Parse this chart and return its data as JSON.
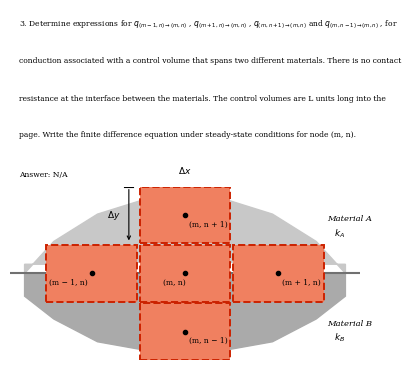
{
  "title_lines": [
    "3. Determine expressions for q(m-1,n)→(m,n) , q(m+1,n)→(m,n) , q(m,n+1)→(m,n) and q(m,n-1)→(m,n) , for",
    "conduction associated with a control volume that spans two different materials. There is no contact",
    "resistance at the interface between the materials. The control volumes are L units long into the",
    "page. Write the finite difference equation under steady-state conditions for node (m, n).",
    "Answer: N/A"
  ],
  "cell_fill": "#f08060",
  "cell_edge": "#cc2200",
  "mat_A_blob_color": "#c8c8c8",
  "mat_B_blob_color": "#aaaaaa",
  "interface_color": "#707070",
  "separator_color": "#888888",
  "dot_color": "#000000",
  "label_top": "(m, n + 1)",
  "label_left": "(m − 1, n)",
  "label_center": "(m, n)",
  "label_right": "(m + 1, n)",
  "label_bottom": "(m, n − 1)",
  "mat_A_label": "Material A",
  "mat_A_k": "k_A",
  "mat_B_label": "Material B",
  "mat_B_k": "k_B",
  "dx_label": "Δx",
  "dy_label": "Δy"
}
